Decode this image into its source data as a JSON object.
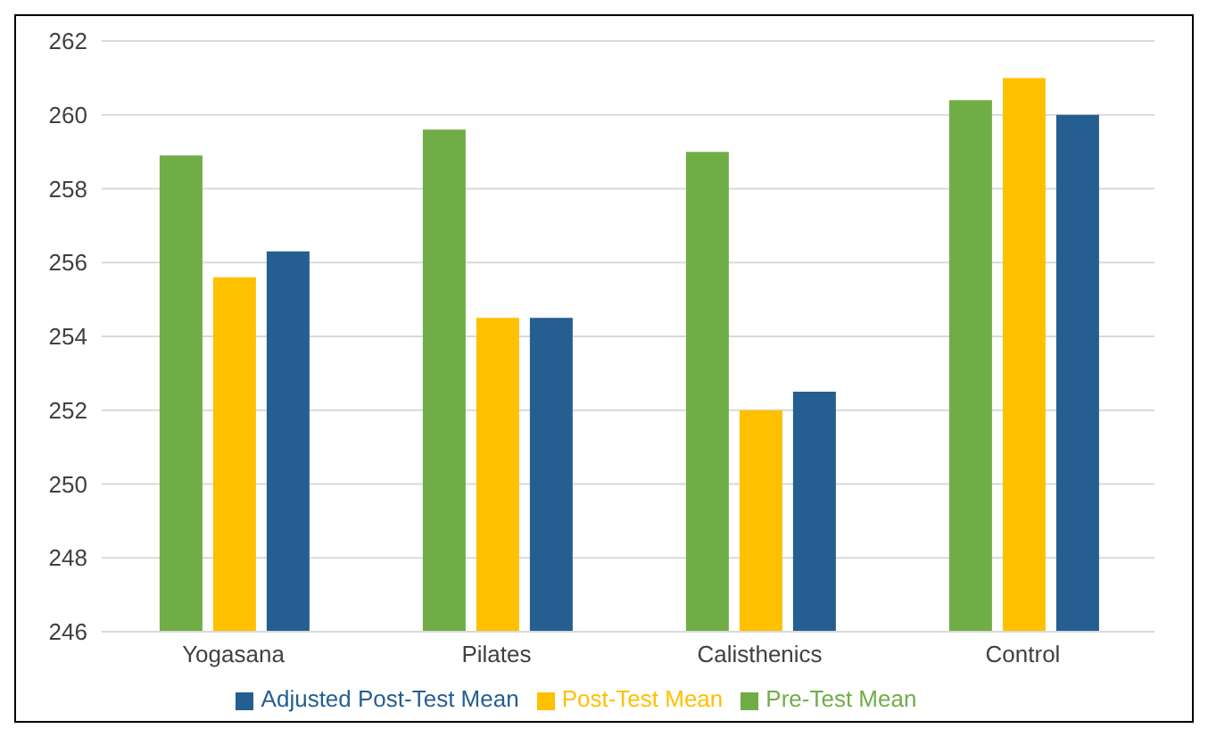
{
  "chart_data": {
    "type": "bar",
    "categories": [
      "Yogasana",
      "Pilates",
      "Calisthenics",
      "Control"
    ],
    "series": [
      {
        "name": "Pre-Test Mean",
        "color": "#70ad47",
        "values": [
          258.9,
          259.6,
          259.0,
          260.4
        ]
      },
      {
        "name": "Post-Test Mean",
        "color": "#ffc000",
        "values": [
          255.6,
          254.5,
          252.0,
          261.0
        ]
      },
      {
        "name": "Adjusted Post-Test Mean",
        "color": "#255e91",
        "values": [
          256.3,
          254.5,
          252.5,
          260.0
        ]
      }
    ],
    "ylim": [
      246,
      262
    ],
    "yticks": [
      246,
      248,
      250,
      252,
      254,
      256,
      258,
      260,
      262
    ],
    "grid": "y",
    "legend": "bottom"
  }
}
